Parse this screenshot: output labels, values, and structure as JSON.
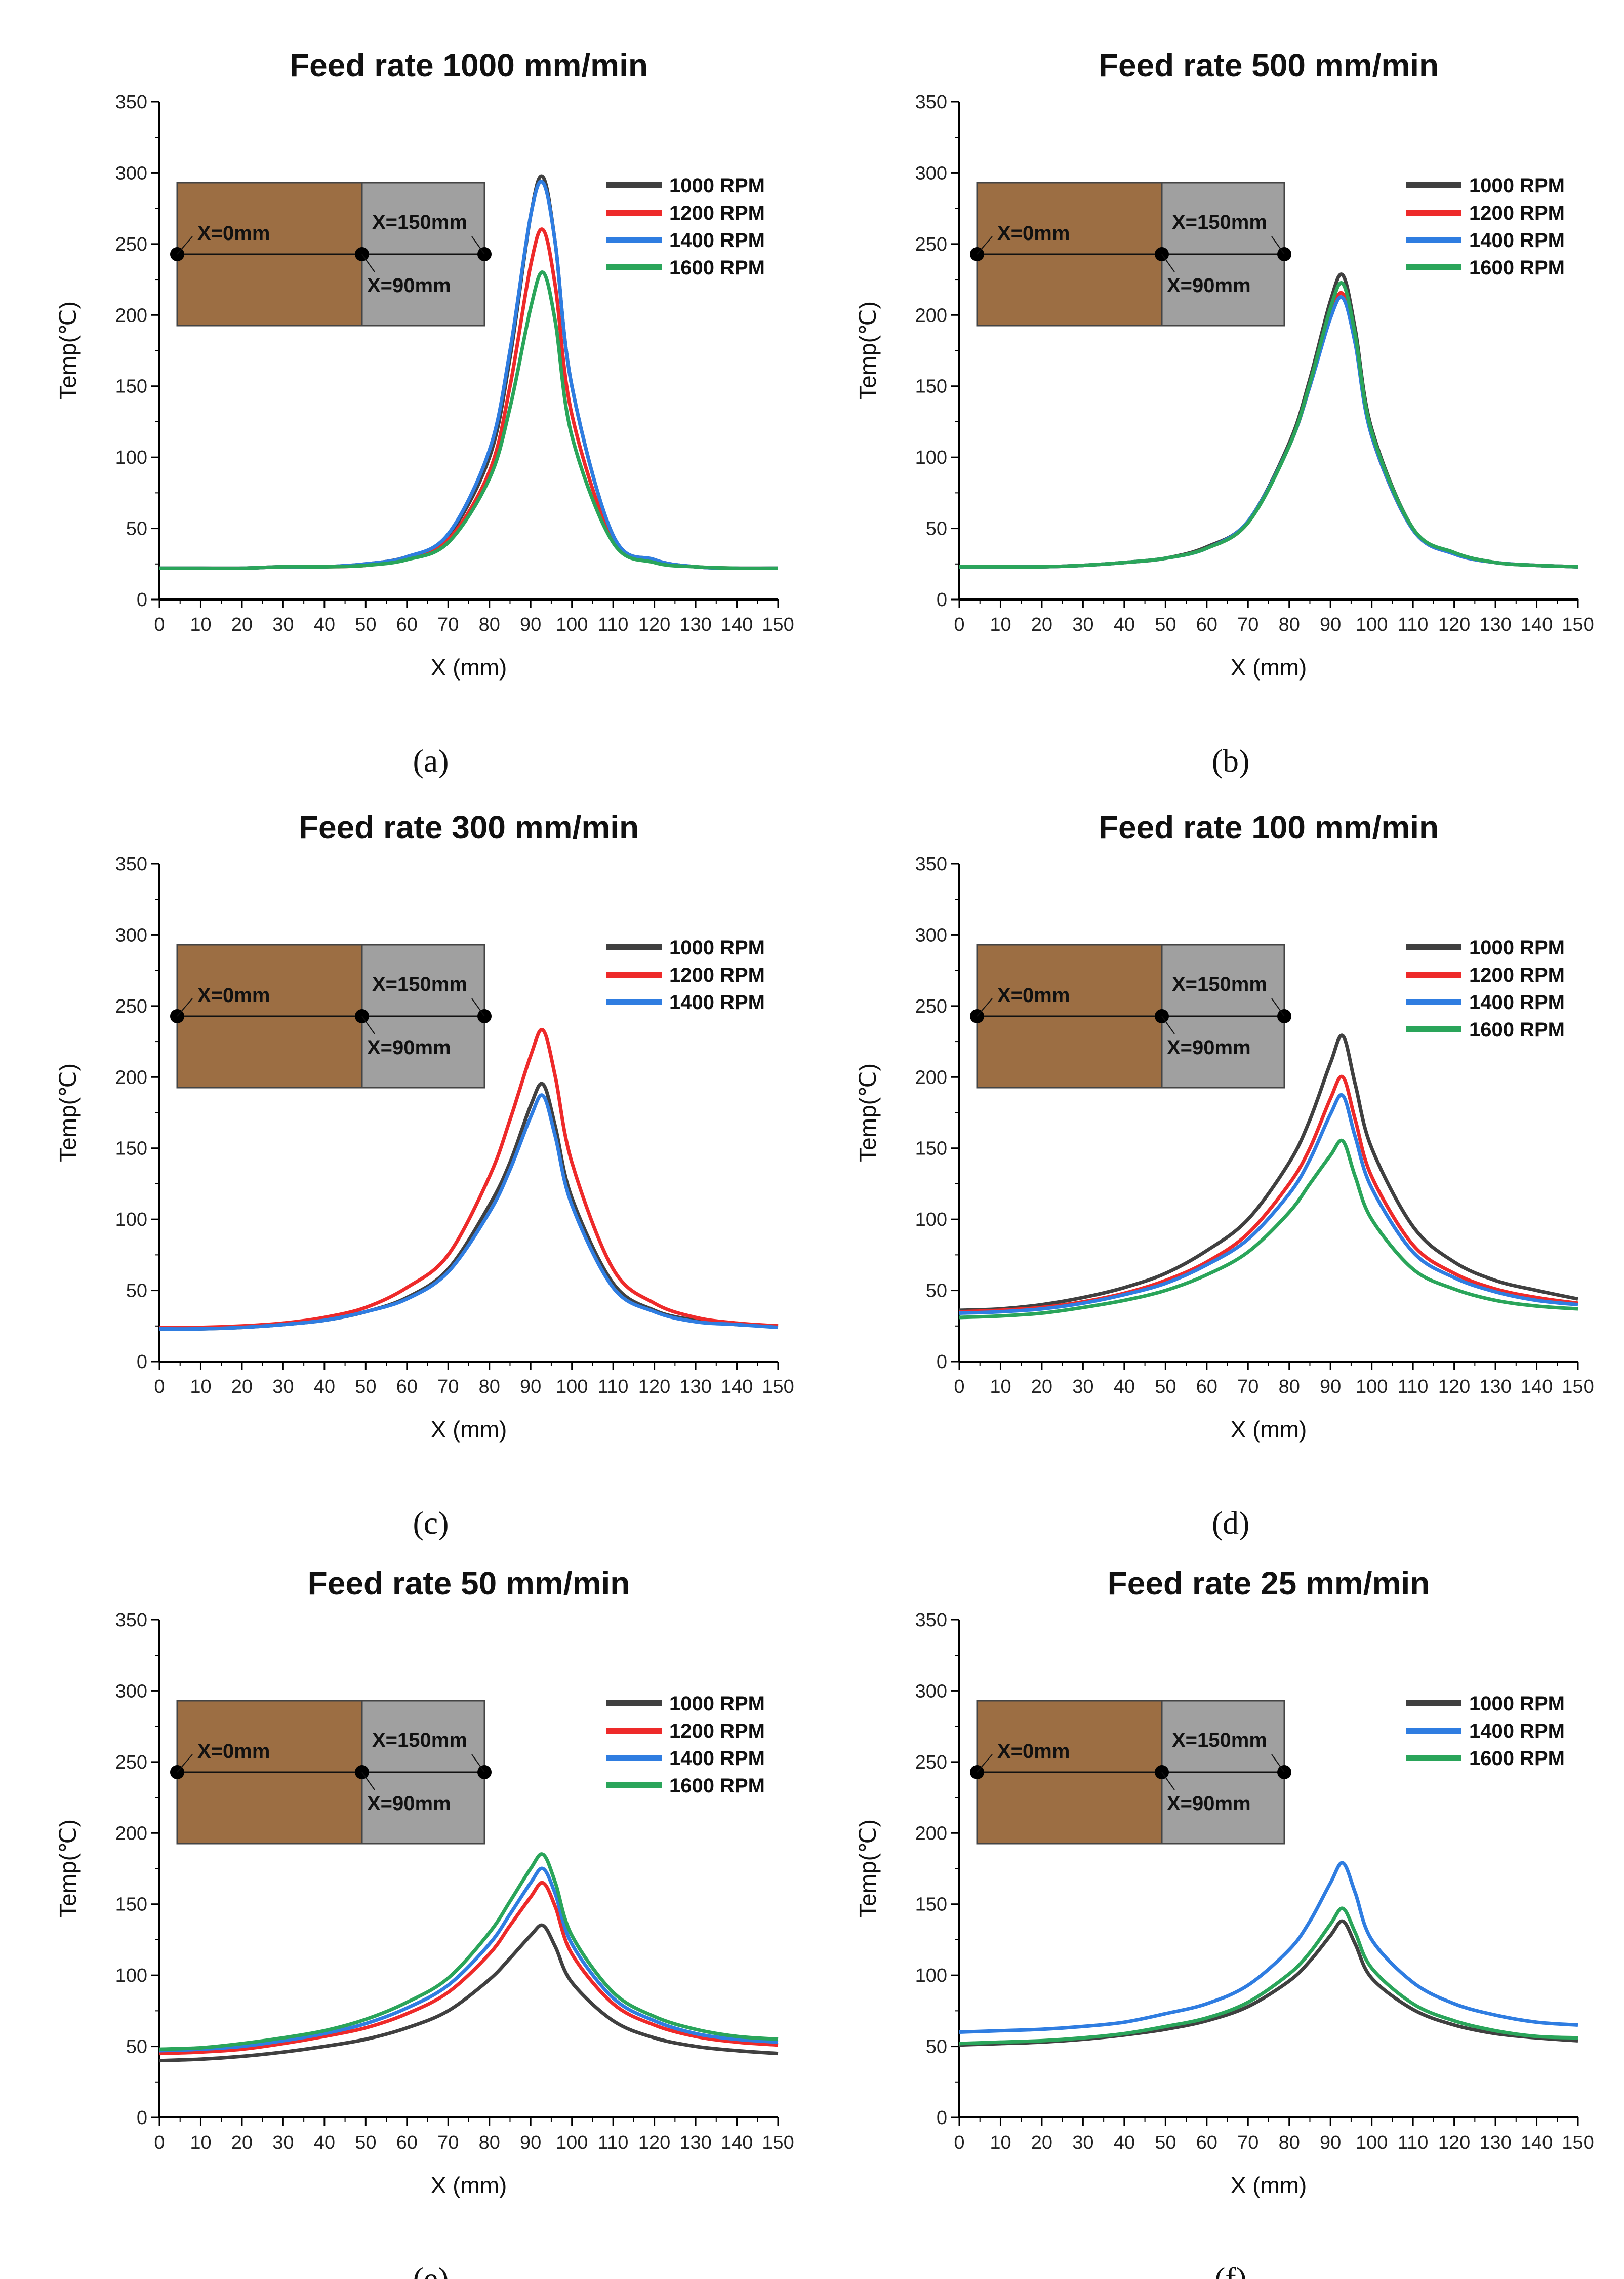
{
  "colors": {
    "1000 RPM": "#404040",
    "1200 RPM": "#ee2a2a",
    "1400 RPM": "#2f7de1",
    "1600 RPM": "#2aa55a",
    "wood": "#9c6e43",
    "metal": "#a0a0a0"
  },
  "inset_labels": {
    "start": "X=0mm",
    "end": "X=150mm",
    "joint": "X=90mm"
  },
  "chart_data": [
    {
      "type": "line",
      "panel": "(a)",
      "title": "Feed rate 1000 mm/min",
      "xlabel": "X (mm)",
      "ylabel": "Temp(℃)",
      "xlim": [
        0,
        150
      ],
      "ylim": [
        0,
        350
      ],
      "xticks": [
        0,
        10,
        20,
        30,
        40,
        50,
        60,
        70,
        80,
        90,
        100,
        110,
        120,
        130,
        140,
        150
      ],
      "yticks": [
        0,
        50,
        100,
        150,
        200,
        250,
        300,
        350
      ],
      "legend": "top-right",
      "x": [
        0,
        10,
        20,
        30,
        40,
        50,
        60,
        70,
        80,
        85,
        90,
        93,
        96,
        100,
        110,
        120,
        130,
        140,
        150
      ],
      "series": [
        {
          "name": "1000 RPM",
          "values": [
            22,
            22,
            22,
            23,
            23,
            25,
            30,
            45,
            100,
            170,
            270,
            297,
            250,
            150,
            45,
            28,
            23,
            22,
            22
          ]
        },
        {
          "name": "1200 RPM",
          "values": [
            22,
            22,
            22,
            23,
            23,
            24,
            29,
            42,
            90,
            150,
            235,
            260,
            220,
            130,
            42,
            27,
            23,
            22,
            22
          ]
        },
        {
          "name": "1400 RPM",
          "values": [
            22,
            22,
            22,
            23,
            23,
            25,
            30,
            46,
            105,
            175,
            270,
            293,
            250,
            150,
            45,
            28,
            23,
            22,
            22
          ]
        },
        {
          "name": "1600 RPM",
          "values": [
            22,
            22,
            22,
            23,
            23,
            24,
            28,
            40,
            85,
            135,
            205,
            230,
            195,
            115,
            40,
            26,
            23,
            22,
            22
          ]
        }
      ]
    },
    {
      "type": "line",
      "panel": "(b)",
      "title": "Feed rate 500 mm/min",
      "xlabel": "X (mm)",
      "ylabel": "Temp(℃)",
      "xlim": [
        0,
        150
      ],
      "ylim": [
        0,
        350
      ],
      "xticks": [
        0,
        10,
        20,
        30,
        40,
        50,
        60,
        70,
        80,
        90,
        100,
        110,
        120,
        130,
        140,
        150
      ],
      "yticks": [
        0,
        50,
        100,
        150,
        200,
        250,
        300,
        350
      ],
      "legend": "top-right",
      "x": [
        0,
        10,
        20,
        30,
        40,
        50,
        60,
        70,
        80,
        85,
        90,
        93,
        96,
        100,
        110,
        120,
        130,
        140,
        150
      ],
      "series": [
        {
          "name": "1000 RPM",
          "values": [
            23,
            23,
            23,
            24,
            26,
            29,
            37,
            55,
            110,
            155,
            210,
            228,
            190,
            120,
            50,
            33,
            26,
            24,
            23
          ]
        },
        {
          "name": "1200 RPM",
          "values": [
            23,
            23,
            23,
            24,
            26,
            29,
            36,
            54,
            108,
            150,
            200,
            215,
            182,
            115,
            49,
            32,
            26,
            24,
            23
          ]
        },
        {
          "name": "1400 RPM",
          "values": [
            23,
            23,
            23,
            24,
            26,
            29,
            36,
            55,
            108,
            150,
            198,
            212,
            180,
            115,
            49,
            32,
            26,
            24,
            23
          ]
        },
        {
          "name": "1600 RPM",
          "values": [
            23,
            23,
            23,
            24,
            26,
            29,
            36,
            54,
            108,
            152,
            205,
            222,
            186,
            118,
            50,
            33,
            26,
            24,
            23
          ]
        }
      ]
    },
    {
      "type": "line",
      "panel": "(c)",
      "title": "Feed rate 300 mm/min",
      "xlabel": "X (mm)",
      "ylabel": "Temp(℃)",
      "xlim": [
        0,
        150
      ],
      "ylim": [
        0,
        350
      ],
      "xticks": [
        0,
        10,
        20,
        30,
        40,
        50,
        60,
        70,
        80,
        90,
        100,
        110,
        120,
        130,
        140,
        150
      ],
      "yticks": [
        0,
        50,
        100,
        150,
        200,
        250,
        300,
        350
      ],
      "legend": "top-right",
      "x": [
        0,
        10,
        20,
        30,
        40,
        50,
        60,
        70,
        80,
        85,
        90,
        93,
        96,
        100,
        110,
        120,
        130,
        140,
        150
      ],
      "series": [
        {
          "name": "1000 RPM",
          "values": [
            23,
            23,
            24,
            26,
            29,
            35,
            45,
            65,
            110,
            140,
            180,
            195,
            165,
            115,
            55,
            36,
            29,
            26,
            25
          ]
        },
        {
          "name": "1200 RPM",
          "values": [
            24,
            24,
            25,
            27,
            31,
            38,
            52,
            75,
            130,
            170,
            215,
            233,
            200,
            140,
            65,
            41,
            31,
            27,
            25
          ]
        },
        {
          "name": "1400 RPM",
          "values": [
            23,
            23,
            24,
            26,
            29,
            35,
            44,
            63,
            105,
            135,
            172,
            187,
            158,
            110,
            52,
            35,
            28,
            26,
            24
          ]
        }
      ]
    },
    {
      "type": "line",
      "panel": "(d)",
      "title": "Feed rate 100 mm/min",
      "xlabel": "X (mm)",
      "ylabel": "Temp(℃)",
      "xlim": [
        0,
        150
      ],
      "ylim": [
        0,
        350
      ],
      "xticks": [
        0,
        10,
        20,
        30,
        40,
        50,
        60,
        70,
        80,
        90,
        100,
        110,
        120,
        130,
        140,
        150
      ],
      "yticks": [
        0,
        50,
        100,
        150,
        200,
        250,
        300,
        350
      ],
      "legend": "top-right",
      "x": [
        0,
        10,
        20,
        30,
        40,
        50,
        60,
        70,
        80,
        85,
        90,
        93,
        96,
        100,
        110,
        120,
        130,
        140,
        150
      ],
      "series": [
        {
          "name": "1000 RPM",
          "values": [
            36,
            37,
            40,
            45,
            52,
            62,
            78,
            100,
            140,
            170,
            210,
            229,
            195,
            150,
            95,
            70,
            57,
            50,
            44
          ]
        },
        {
          "name": "1200 RPM",
          "values": [
            35,
            36,
            38,
            42,
            48,
            57,
            70,
            90,
            125,
            150,
            185,
            200,
            170,
            130,
            82,
            62,
            51,
            45,
            41
          ]
        },
        {
          "name": "1400 RPM",
          "values": [
            34,
            35,
            37,
            41,
            47,
            55,
            68,
            86,
            118,
            142,
            174,
            187,
            158,
            122,
            77,
            59,
            49,
            43,
            40
          ]
        },
        {
          "name": "1600 RPM",
          "values": [
            31,
            32,
            34,
            38,
            43,
            50,
            61,
            77,
            105,
            125,
            145,
            155,
            130,
            100,
            65,
            51,
            43,
            39,
            37
          ]
        }
      ]
    },
    {
      "type": "line",
      "panel": "(e)",
      "title": "Feed rate 50 mm/min",
      "xlabel": "X (mm)",
      "ylabel": "Temp(℃)",
      "xlim": [
        0,
        150
      ],
      "ylim": [
        0,
        350
      ],
      "xticks": [
        0,
        10,
        20,
        30,
        40,
        50,
        60,
        70,
        80,
        90,
        100,
        110,
        120,
        130,
        140,
        150
      ],
      "yticks": [
        0,
        50,
        100,
        150,
        200,
        250,
        300,
        350
      ],
      "legend": "top-right",
      "x": [
        0,
        10,
        20,
        30,
        40,
        50,
        60,
        70,
        80,
        85,
        90,
        93,
        96,
        100,
        110,
        120,
        130,
        140,
        150
      ],
      "series": [
        {
          "name": "1000 RPM",
          "values": [
            40,
            41,
            43,
            46,
            50,
            55,
            63,
            75,
            97,
            112,
            128,
            135,
            120,
            95,
            68,
            56,
            50,
            47,
            45
          ]
        },
        {
          "name": "1200 RPM",
          "values": [
            45,
            46,
            48,
            52,
            57,
            63,
            73,
            88,
            115,
            135,
            155,
            165,
            148,
            115,
            80,
            65,
            57,
            53,
            51
          ]
        },
        {
          "name": "1400 RPM",
          "values": [
            47,
            48,
            50,
            54,
            59,
            66,
            77,
            93,
            122,
            143,
            165,
            175,
            157,
            122,
            84,
            68,
            59,
            55,
            53
          ]
        },
        {
          "name": "1600 RPM",
          "values": [
            48,
            49,
            52,
            56,
            61,
            69,
            81,
            98,
            130,
            152,
            175,
            185,
            165,
            128,
            88,
            71,
            62,
            57,
            55
          ]
        }
      ]
    },
    {
      "type": "line",
      "panel": "(f)",
      "title": "Feed rate 25 mm/min",
      "xlabel": "X (mm)",
      "ylabel": "Temp(℃)",
      "xlim": [
        0,
        150
      ],
      "ylim": [
        0,
        350
      ],
      "xticks": [
        0,
        10,
        20,
        30,
        40,
        50,
        60,
        70,
        80,
        90,
        100,
        110,
        120,
        130,
        140,
        150
      ],
      "yticks": [
        0,
        50,
        100,
        150,
        200,
        250,
        300,
        350
      ],
      "legend": "top-right",
      "x": [
        0,
        10,
        20,
        30,
        40,
        50,
        60,
        70,
        80,
        85,
        90,
        93,
        96,
        100,
        110,
        120,
        130,
        140,
        150
      ],
      "series": [
        {
          "name": "1000 RPM",
          "values": [
            51,
            52,
            53,
            55,
            58,
            62,
            68,
            78,
            96,
            110,
            128,
            138,
            122,
            98,
            76,
            65,
            59,
            56,
            54
          ]
        },
        {
          "name": "1400 RPM",
          "values": [
            60,
            61,
            62,
            64,
            67,
            73,
            80,
            93,
            118,
            138,
            165,
            179,
            158,
            125,
            95,
            80,
            72,
            67,
            65
          ]
        },
        {
          "name": "1600 RPM",
          "values": [
            52,
            53,
            54,
            56,
            59,
            64,
            70,
            81,
            101,
            116,
            136,
            147,
            130,
            105,
            80,
            68,
            61,
            57,
            56
          ]
        }
      ]
    }
  ]
}
